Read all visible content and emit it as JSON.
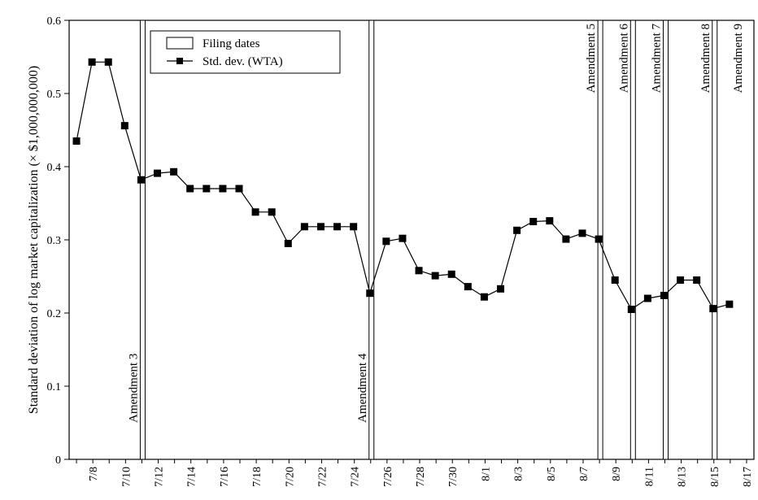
{
  "chart_data": {
    "type": "line",
    "title": "",
    "xlabel": "",
    "ylabel": "Standard deviation of log market capitalization (× $1,000,000,000)",
    "ylim": [
      0,
      0.6
    ],
    "yticks": [
      "0",
      "0.1",
      "0.2",
      "0.3",
      "0.4",
      "0.5",
      "0.6"
    ],
    "x_range_days": [
      0,
      41
    ],
    "xticks": [
      {
        "day": 1,
        "label": "7/8"
      },
      {
        "day": 3,
        "label": "7/10"
      },
      {
        "day": 5,
        "label": "7/12"
      },
      {
        "day": 7,
        "label": "7/14"
      },
      {
        "day": 9,
        "label": "7/16"
      },
      {
        "day": 11,
        "label": "7/18"
      },
      {
        "day": 13,
        "label": "7/20"
      },
      {
        "day": 15,
        "label": "7/22"
      },
      {
        "day": 17,
        "label": "7/24"
      },
      {
        "day": 19,
        "label": "7/26"
      },
      {
        "day": 21,
        "label": "7/28"
      },
      {
        "day": 23,
        "label": "7/30"
      },
      {
        "day": 25,
        "label": "8/1"
      },
      {
        "day": 27,
        "label": "8/3"
      },
      {
        "day": 29,
        "label": "8/5"
      },
      {
        "day": 31,
        "label": "8/7"
      },
      {
        "day": 33,
        "label": "8/9"
      },
      {
        "day": 35,
        "label": "8/11"
      },
      {
        "day": 37,
        "label": "8/13"
      },
      {
        "day": 39,
        "label": "8/15"
      },
      {
        "day": 41,
        "label": "8/17"
      }
    ],
    "series": [
      {
        "name": "Std. dev. (WTA)",
        "points": [
          [
            0.45,
            0.435
          ],
          [
            1.4,
            0.543
          ],
          [
            2.4,
            0.543
          ],
          [
            3.4,
            0.456
          ],
          [
            4.4,
            0.382
          ],
          [
            5.4,
            0.391
          ],
          [
            6.4,
            0.393
          ],
          [
            7.4,
            0.37
          ],
          [
            8.4,
            0.37
          ],
          [
            9.4,
            0.37
          ],
          [
            10.4,
            0.37
          ],
          [
            11.4,
            0.338
          ],
          [
            12.4,
            0.338
          ],
          [
            13.4,
            0.295
          ],
          [
            14.4,
            0.318
          ],
          [
            15.4,
            0.318
          ],
          [
            16.4,
            0.318
          ],
          [
            17.4,
            0.318
          ],
          [
            18.4,
            0.227
          ],
          [
            19.4,
            0.298
          ],
          [
            20.4,
            0.302
          ],
          [
            21.4,
            0.258
          ],
          [
            22.4,
            0.251
          ],
          [
            23.4,
            0.253
          ],
          [
            24.4,
            0.236
          ],
          [
            25.4,
            0.222
          ],
          [
            26.4,
            0.233
          ],
          [
            27.4,
            0.313
          ],
          [
            28.4,
            0.325
          ],
          [
            29.4,
            0.326
          ],
          [
            30.4,
            0.301
          ],
          [
            31.4,
            0.309
          ],
          [
            32.4,
            0.301
          ],
          [
            33.4,
            0.245
          ],
          [
            34.4,
            0.205
          ],
          [
            35.4,
            0.22
          ],
          [
            36.4,
            0.224
          ],
          [
            37.4,
            0.245
          ],
          [
            38.4,
            0.245
          ],
          [
            39.4,
            0.206
          ],
          [
            40.4,
            0.212
          ]
        ]
      }
    ],
    "filing_dates": [
      {
        "day": 4.5,
        "label": "Amendment 3"
      },
      {
        "day": 18.5,
        "label": "Amendment 4"
      },
      {
        "day": 32.5,
        "label": "Amendment 5"
      },
      {
        "day": 34.5,
        "label": "Amendment 6"
      },
      {
        "day": 36.5,
        "label": "Amendment 7"
      },
      {
        "day": 39.5,
        "label": "Amendment 8"
      }
    ],
    "extra_amendment": {
      "day": 41,
      "label": "Amendment 9"
    },
    "legend": {
      "position": "top-left",
      "entries": [
        "Filing dates",
        "Std. dev. (WTA)"
      ]
    }
  }
}
